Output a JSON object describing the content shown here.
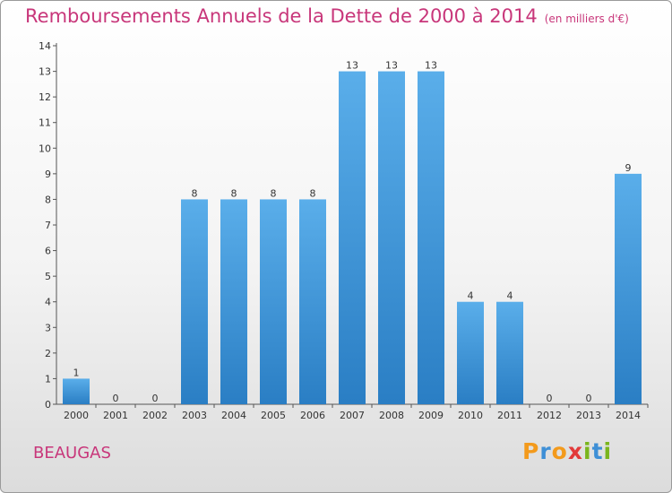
{
  "title": "Remboursements Annuels de la Dette de 2000 à 2014",
  "unit": "(en milliers d'€)",
  "commune": "BEAUGAS",
  "logo": {
    "letters": [
      "P",
      "r",
      "o",
      "x",
      "i",
      "t",
      "i"
    ],
    "colors": [
      "#f39a1c",
      "#3e8fd6",
      "#f39a1c",
      "#e23a3a",
      "#7ab51d",
      "#3e8fd6",
      "#7ab51d"
    ]
  },
  "colors": {
    "bar": "#4a9fe0",
    "title": "#c8367a"
  },
  "chart_data": {
    "type": "bar",
    "categories": [
      "2000",
      "2001",
      "2002",
      "2003",
      "2004",
      "2005",
      "2006",
      "2007",
      "2008",
      "2009",
      "2010",
      "2011",
      "2012",
      "2013",
      "2014"
    ],
    "values": [
      1,
      0,
      0,
      8,
      8,
      8,
      8,
      13,
      13,
      13,
      4,
      4,
      0,
      0,
      9
    ],
    "yticks": [
      "0",
      "1",
      "2",
      "3",
      "4",
      "5",
      "6",
      "7",
      "8",
      "9",
      "10",
      "11",
      "12",
      "13",
      "14"
    ],
    "ylim": [
      0,
      14
    ],
    "grid": false,
    "legend": "none"
  }
}
